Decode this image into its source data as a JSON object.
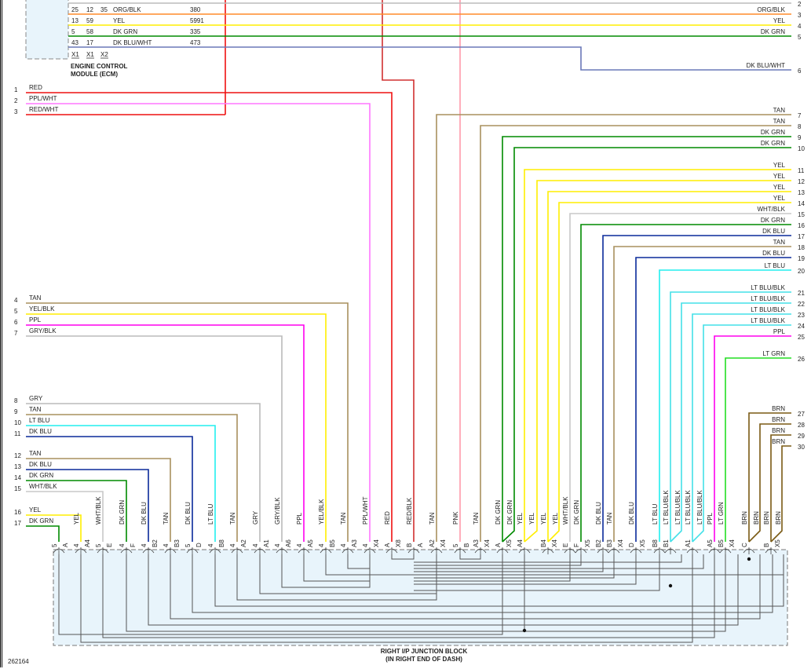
{
  "ecm": {
    "title_line1": "ENGINE CONTROL",
    "title_line2": "MODULE (ECM)",
    "rows": [
      {
        "c1": "25",
        "c2": "12",
        "c3": "35",
        "color": "ORG/BLK",
        "circuit": "380"
      },
      {
        "c1": "13",
        "c2": "59",
        "c3": "",
        "color": "YEL",
        "circuit": "5991"
      },
      {
        "c1": "5",
        "c2": "58",
        "c3": "",
        "color": "DK GRN",
        "circuit": "335"
      },
      {
        "c1": "43",
        "c2": "17",
        "c3": "",
        "color": "DK BLU/WHT",
        "circuit": "473"
      }
    ],
    "connectors": [
      "X1",
      "X1",
      "X2"
    ]
  },
  "right_wires": [
    {
      "num": "2",
      "label": "",
      "color": "#bbbbbb"
    },
    {
      "num": "3",
      "label": "ORG/BLK",
      "color": "#ff8c2a"
    },
    {
      "num": "4",
      "label": "YEL",
      "color": "#ffee00"
    },
    {
      "num": "5",
      "label": "DK GRN",
      "color": "#008a00"
    },
    {
      "num": "6",
      "label": "DK BLU/WHT",
      "color": "#6a78b8"
    },
    {
      "num": "7",
      "label": "TAN",
      "color": "#a8905e"
    },
    {
      "num": "8",
      "label": "TAN",
      "color": "#a8905e"
    },
    {
      "num": "9",
      "label": "DK GRN",
      "color": "#008a00"
    },
    {
      "num": "10",
      "label": "DK GRN",
      "color": "#008a00"
    },
    {
      "num": "11",
      "label": "YEL",
      "color": "#ffee00"
    },
    {
      "num": "12",
      "label": "YEL",
      "color": "#ffee00"
    },
    {
      "num": "13",
      "label": "YEL",
      "color": "#ffee00"
    },
    {
      "num": "14",
      "label": "YEL",
      "color": "#ffee00"
    },
    {
      "num": "15",
      "label": "WHT/BLK",
      "color": "#c8c8c8"
    },
    {
      "num": "16",
      "label": "DK GRN",
      "color": "#008a00"
    },
    {
      "num": "17",
      "label": "DK BLU",
      "color": "#0a2a9a"
    },
    {
      "num": "18",
      "label": "TAN",
      "color": "#a8905e"
    },
    {
      "num": "19",
      "label": "DK BLU",
      "color": "#0a2a9a"
    },
    {
      "num": "20",
      "label": "LT BLU",
      "color": "#22eeee"
    },
    {
      "num": "21",
      "label": "LT BLU/BLK",
      "color": "#44e0e8"
    },
    {
      "num": "22",
      "label": "LT BLU/BLK",
      "color": "#44e0e8"
    },
    {
      "num": "23",
      "label": "LT BLU/BLK",
      "color": "#44e0e8"
    },
    {
      "num": "24",
      "label": "LT BLU/BLK",
      "color": "#44e0e8"
    },
    {
      "num": "25",
      "label": "PPL",
      "color": "#ff00ee"
    },
    {
      "num": "26",
      "label": "LT GRN",
      "color": "#22dd22"
    },
    {
      "num": "27",
      "label": "BRN",
      "color": "#7a5a14"
    },
    {
      "num": "28",
      "label": "BRN",
      "color": "#7a5a14"
    },
    {
      "num": "29",
      "label": "BRN",
      "color": "#7a5a14"
    },
    {
      "num": "30",
      "label": "BRN",
      "color": "#7a5a14"
    }
  ],
  "left_wires": [
    {
      "num": "1",
      "label": "RED",
      "color": "#ee1111"
    },
    {
      "num": "2",
      "label": "PPL/WHT",
      "color": "#ff77ff"
    },
    {
      "num": "3",
      "label": "RED/WHT",
      "color": "#ee1111"
    },
    {
      "num": "4",
      "label": "TAN",
      "color": "#a8905e"
    },
    {
      "num": "5",
      "label": "YEL/BLK",
      "color": "#ffee00"
    },
    {
      "num": "6",
      "label": "PPL",
      "color": "#ff00ee"
    },
    {
      "num": "7",
      "label": "GRY/BLK",
      "color": "#bbbbbb"
    },
    {
      "num": "8",
      "label": "GRY",
      "color": "#bbbbbb"
    },
    {
      "num": "9",
      "label": "TAN",
      "color": "#a8905e"
    },
    {
      "num": "10",
      "label": "LT BLU",
      "color": "#22eeee"
    },
    {
      "num": "11",
      "label": "DK BLU",
      "color": "#0a2a9a"
    },
    {
      "num": "12",
      "label": "TAN",
      "color": "#a8905e"
    },
    {
      "num": "13",
      "label": "DK BLU",
      "color": "#0a2a9a"
    },
    {
      "num": "14",
      "label": "DK GRN",
      "color": "#008a00"
    },
    {
      "num": "15",
      "label": "WHT/BLK",
      "color": "#c8c8c8"
    },
    {
      "num": "16",
      "label": "YEL",
      "color": "#ffee00"
    },
    {
      "num": "17",
      "label": "DK GRN",
      "color": "#008a00"
    }
  ],
  "pins": [
    {
      "wires": [
        ""
      ],
      "a": "5",
      "b": "A"
    },
    {
      "wires": [
        "YEL"
      ],
      "a": "4",
      "b": "A4"
    },
    {
      "wires": [
        "WHT/BLK"
      ],
      "a": "5",
      "b": "E"
    },
    {
      "wires": [
        "DK GRN"
      ],
      "a": "4",
      "b": "F"
    },
    {
      "wires": [
        "DK BLU"
      ],
      "a": "4",
      "b": "B2"
    },
    {
      "wires": [
        "TAN"
      ],
      "a": "4",
      "b": "B3"
    },
    {
      "wires": [
        "DK BLU"
      ],
      "a": "5",
      "b": "D"
    },
    {
      "wires": [
        "LT BLU"
      ],
      "a": "4",
      "b": "B8"
    },
    {
      "wires": [
        "TAN"
      ],
      "a": "4",
      "b": "A2"
    },
    {
      "wires": [
        "GRY"
      ],
      "a": "4",
      "b": "A1"
    },
    {
      "wires": [
        "GRY/BLK"
      ],
      "a": "4",
      "b": "A6"
    },
    {
      "wires": [
        "PPL"
      ],
      "a": "4",
      "b": "A5"
    },
    {
      "wires": [
        "YEL/BLK"
      ],
      "a": "4",
      "b": "B5"
    },
    {
      "wires": [
        "TAN"
      ],
      "a": "4",
      "b": "A3"
    },
    {
      "wires": [
        "PPL/WHT"
      ],
      "a": "4",
      "b": "X4"
    },
    {
      "wires": [
        "RED"
      ],
      "a": "A",
      "b": "X8"
    },
    {
      "wires": [
        "RED/BLK"
      ],
      "a": "B",
      "b": "A"
    },
    {
      "wires": [
        "TAN"
      ],
      "a": "A2",
      "b": "X4"
    },
    {
      "wires": [
        "PNK"
      ],
      "a": "5",
      "b": "B"
    },
    {
      "wires": [
        "TAN"
      ],
      "a": "A3",
      "b": "X4"
    },
    {
      "wires": [
        "DK GRN",
        "DK GRN"
      ],
      "a": "A",
      "b": "X5"
    },
    {
      "wires": [
        "YEL",
        "YEL"
      ],
      "a": "A4",
      "b": ""
    },
    {
      "wires": [
        "YEL",
        "YEL"
      ],
      "a": "B4",
      "b": "X4"
    },
    {
      "wires": [
        "WHT/BLK"
      ],
      "a": "E",
      "b": ""
    },
    {
      "wires": [
        "DK GRN"
      ],
      "a": "F",
      "b": "X5"
    },
    {
      "wires": [
        "DK BLU"
      ],
      "a": "B2",
      "b": ""
    },
    {
      "wires": [
        "TAN"
      ],
      "a": "B3",
      "b": "X4"
    },
    {
      "wires": [
        "DK BLU"
      ],
      "a": "D",
      "b": "X5"
    },
    {
      "wires": [
        "LT BLU"
      ],
      "a": "B8",
      "b": ""
    },
    {
      "wires": [
        "LT BLU/BLK",
        "LT BLU/BLK"
      ],
      "a": "B1",
      "b": ""
    },
    {
      "wires": [
        "LT BLU/BLK",
        "LT BLU/BLK"
      ],
      "a": "A1",
      "b": ""
    },
    {
      "wires": [
        "PPL"
      ],
      "a": "A5",
      "b": ""
    },
    {
      "wires": [
        "LT GRN"
      ],
      "a": "B5",
      "b": "X4"
    },
    {
      "wires": [
        "BRN",
        "BRN"
      ],
      "a": "C",
      "b": ""
    },
    {
      "wires": [
        "BRN",
        "BRN"
      ],
      "a": "B",
      "b": "X5"
    }
  ],
  "extra_wires": {
    "red_blk": "#d03030",
    "pnk": "#ff99aa"
  },
  "junction_block": {
    "line1": "RIGHT I/P JUNCTION BLOCK",
    "line2": "(IN RIGHT END OF DASH)"
  },
  "figure_id": "262164"
}
